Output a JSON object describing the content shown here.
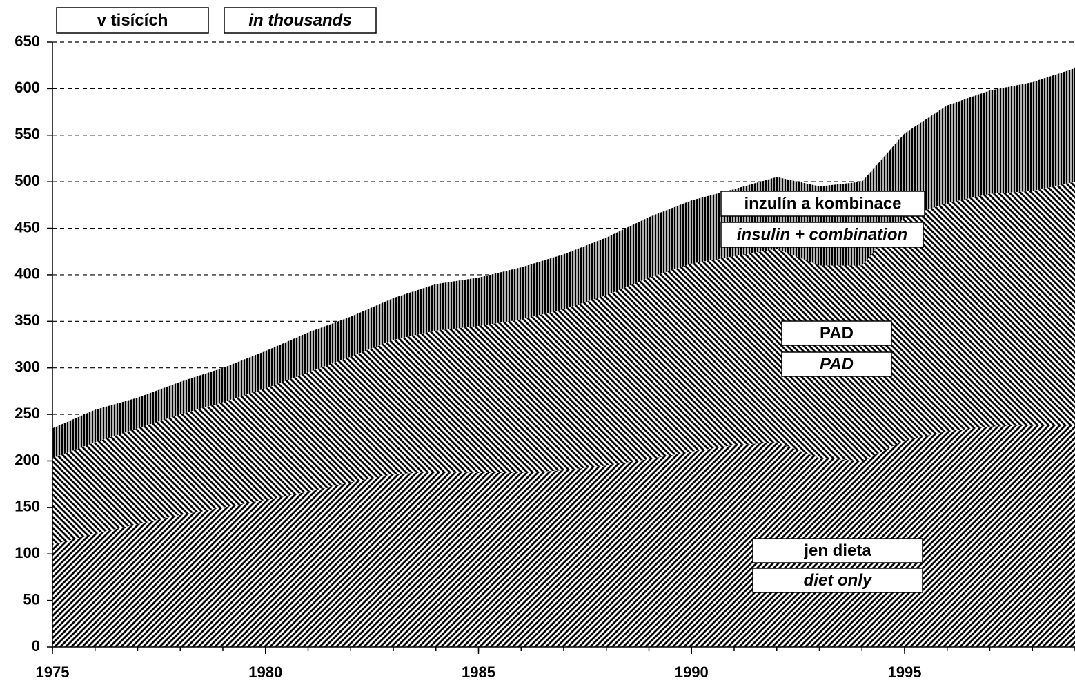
{
  "chart_data": {
    "type": "area",
    "stacked": true,
    "unit_label": "v tisících",
    "unit_label_en": "in thousands",
    "x": [
      1975,
      1976,
      1977,
      1978,
      1979,
      1980,
      1981,
      1982,
      1983,
      1984,
      1985,
      1986,
      1987,
      1988,
      1989,
      1990,
      1991,
      1992,
      1993,
      1994,
      1995,
      1996,
      1997,
      1998,
      1999
    ],
    "series": [
      {
        "name": "jen dieta",
        "name_en": "diet only",
        "color": "#000000",
        "pattern": "diagonal-up",
        "values": [
          110,
          122,
          132,
          142,
          150,
          158,
          167,
          177,
          186,
          188,
          187,
          187,
          190,
          195,
          202,
          210,
          217,
          220,
          203,
          200,
          222,
          232,
          237,
          238,
          239
        ]
      },
      {
        "name": "PAD",
        "name_en": "PAD",
        "color": "#000000",
        "pattern": "diagonal-down",
        "values": [
          93,
          98,
          103,
          108,
          113,
          120,
          128,
          135,
          144,
          152,
          158,
          165,
          173,
          183,
          195,
          202,
          203,
          208,
          207,
          210,
          240,
          245,
          250,
          252,
          261
        ]
      },
      {
        "name": "inzulín a kombinace",
        "name_en": "insulin + combination",
        "color": "#000000",
        "pattern": "vertical",
        "values": [
          32,
          35,
          33,
          35,
          37,
          40,
          43,
          43,
          45,
          50,
          52,
          56,
          59,
          62,
          65,
          68,
          72,
          77,
          85,
          90,
          90,
          105,
          111,
          117,
          122
        ]
      }
    ],
    "xlim": [
      1975,
      1999
    ],
    "xticks": [
      1975,
      1980,
      1985,
      1990,
      1995
    ],
    "ylim": [
      0,
      650
    ],
    "yticks": [
      0,
      50,
      100,
      150,
      200,
      250,
      300,
      350,
      400,
      450,
      500,
      550,
      600,
      650
    ],
    "grid": true
  }
}
